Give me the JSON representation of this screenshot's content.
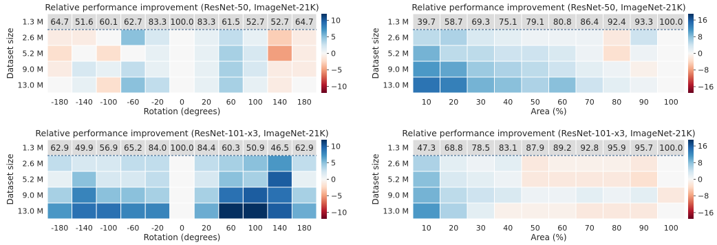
{
  "chart_data": [
    {
      "type": "heatmap",
      "title": "Relative performance improvement (ResNet-50, ImageNet-21K)",
      "xlabel": "Rotation (degrees)",
      "ylabel": "Dataset size",
      "x": [
        "-180",
        "-140",
        "-100",
        "-60",
        "-20",
        "0",
        "20",
        "60",
        "100",
        "140",
        "180"
      ],
      "y": [
        "1.3 M",
        "2.6 M",
        "5.2 M",
        "9.0 M",
        "13.0 M"
      ],
      "baseline_row": [
        64.7,
        51.6,
        60.1,
        62.7,
        83.3,
        100.0,
        83.3,
        61.5,
        52.7,
        52.7,
        64.7
      ],
      "values": [
        [
          -1,
          -1,
          0,
          5,
          2,
          0,
          1,
          3,
          1,
          -3,
          -1
        ],
        [
          -2,
          0,
          -2,
          0,
          1,
          0,
          1,
          4,
          2,
          -5,
          -1
        ],
        [
          -1,
          2,
          1,
          3,
          1,
          0,
          1,
          4,
          2,
          -1,
          -1
        ],
        [
          0,
          1,
          -2,
          5,
          3,
          0,
          1,
          4,
          1,
          -1,
          0
        ]
      ],
      "colorbar": {
        "ticks": [
          10,
          5,
          0,
          -5,
          -10
        ],
        "range": [
          -12,
          12
        ]
      }
    },
    {
      "type": "heatmap",
      "title": "Relative performance improvement (ResNet-50, ImageNet-21K)",
      "xlabel": "Area (%)",
      "ylabel": "Dataset size",
      "x": [
        "10",
        "20",
        "30",
        "40",
        "50",
        "60",
        "70",
        "80",
        "90",
        "100"
      ],
      "y": [
        "1.3 M",
        "2.6 M",
        "5.2 M",
        "9.0 M",
        "13.0 M"
      ],
      "baseline_row": [
        39.7,
        58.7,
        69.3,
        75.1,
        79.1,
        80.8,
        86.4,
        92.4,
        93.3,
        100.0
      ],
      "values": [
        [
          5,
          6,
          3,
          2,
          1,
          1,
          1,
          -2,
          4,
          0
        ],
        [
          9,
          5,
          5,
          4,
          4,
          3,
          1,
          -3,
          1,
          0
        ],
        [
          11,
          10,
          7,
          6,
          5,
          4,
          2,
          1,
          -1,
          0
        ],
        [
          14,
          13,
          9,
          8,
          6,
          8,
          4,
          2,
          1,
          0
        ]
      ],
      "colorbar": {
        "ticks": [
          16,
          8,
          0,
          -8,
          -16
        ],
        "range": [
          -19,
          19
        ]
      }
    },
    {
      "type": "heatmap",
      "title": "Relative performance improvement (ResNet-101-x3, ImageNet-21K)",
      "xlabel": "Rotation (degrees)",
      "ylabel": "Dataset size",
      "x": [
        "-180",
        "-140",
        "-100",
        "-60",
        "-20",
        "0",
        "20",
        "60",
        "100",
        "140",
        "180"
      ],
      "y": [
        "1.3 M",
        "2.6 M",
        "5.2 M",
        "9.0 M",
        "13.0 M"
      ],
      "baseline_row": [
        62.9,
        49.9,
        56.9,
        65.2,
        84.0,
        100.0,
        84.4,
        60.3,
        50.9,
        46.5,
        62.9
      ],
      "values": [
        [
          3,
          2,
          2,
          3,
          3,
          0,
          3,
          4,
          5,
          7,
          3
        ],
        [
          1,
          5,
          2,
          2,
          3,
          0,
          2,
          5,
          4,
          10,
          1
        ],
        [
          4,
          8,
          5,
          5,
          4,
          0,
          4,
          9,
          10,
          9,
          4
        ],
        [
          7,
          9,
          9,
          8,
          8,
          0,
          6,
          12,
          13,
          10,
          6
        ]
      ],
      "colorbar": {
        "ticks": [
          10,
          5,
          0,
          -5,
          -10
        ],
        "range": [
          -12,
          12
        ]
      }
    },
    {
      "type": "heatmap",
      "title": "Relative performance improvement (ResNet-101-x3, ImageNet-21K)",
      "xlabel": "Area (%)",
      "ylabel": "Dataset size",
      "x": [
        "10",
        "20",
        "30",
        "40",
        "50",
        "60",
        "70",
        "80",
        "90",
        "100"
      ],
      "y": [
        "1.3 M",
        "2.6 M",
        "5.2 M",
        "9.0 M",
        "13.0 M"
      ],
      "baseline_row": [
        47.3,
        68.8,
        78.5,
        83.1,
        87.9,
        89.2,
        92.8,
        95.9,
        95.7,
        100.0
      ],
      "values": [
        [
          6,
          2,
          1,
          2,
          -2,
          -1,
          -1,
          -1,
          -2,
          0
        ],
        [
          8,
          3,
          2,
          1,
          -2,
          -2,
          -2,
          -2,
          -3,
          0
        ],
        [
          9,
          5,
          4,
          3,
          1,
          1,
          2,
          1,
          2,
          -2
        ],
        [
          11,
          6,
          2,
          -1,
          -1,
          -1,
          -2,
          -2,
          -2,
          0
        ]
      ],
      "colorbar": {
        "ticks": [
          16,
          8,
          0,
          -8,
          -16
        ],
        "range": [
          -19,
          19
        ]
      }
    }
  ]
}
